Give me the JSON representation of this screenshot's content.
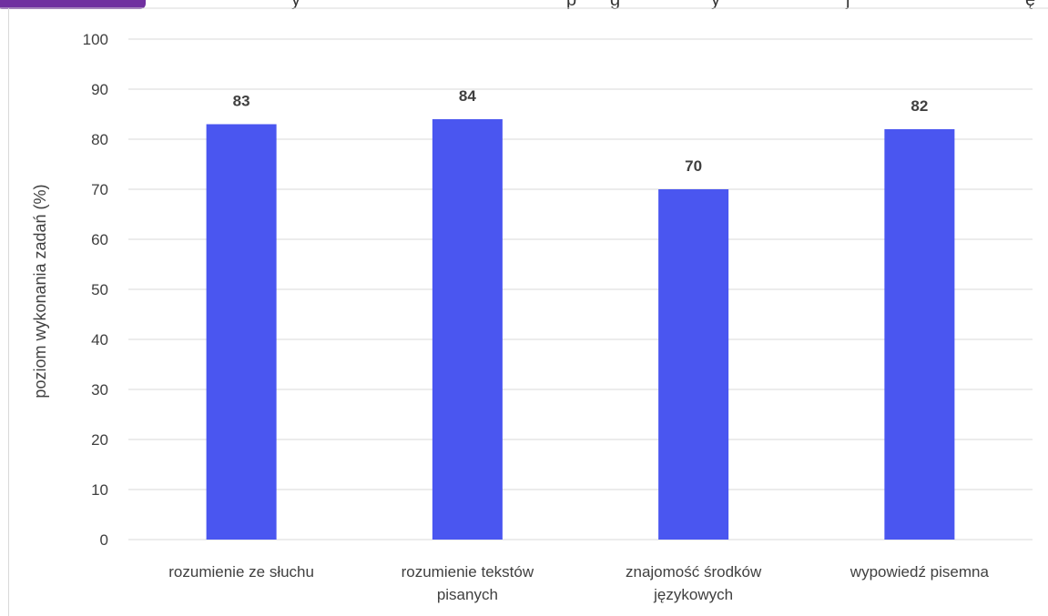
{
  "header": {
    "badge_color": "#7030A0",
    "fragments": [
      "y",
      "p",
      "g",
      "y",
      "j",
      "ę"
    ]
  },
  "chart_data": {
    "type": "bar",
    "categories": [
      [
        "rozumienie ze słuchu"
      ],
      [
        "rozumienie tekstów",
        "pisanych"
      ],
      [
        "znajomość środków",
        "językowych"
      ],
      [
        "wypowiedź pisemna"
      ]
    ],
    "values": [
      83,
      84,
      70,
      82
    ],
    "data_labels": [
      "83",
      "84",
      "70",
      "82"
    ],
    "ylabel": "poziom wykonania zadań (%)",
    "ylim": [
      0,
      100
    ],
    "yticks": [
      0,
      10,
      20,
      30,
      40,
      50,
      60,
      70,
      80,
      90,
      100
    ],
    "grid": true,
    "legend": "none",
    "bar_color": "#4A56F0",
    "grid_color": "#D9D9D9",
    "text_color": "#404040"
  }
}
